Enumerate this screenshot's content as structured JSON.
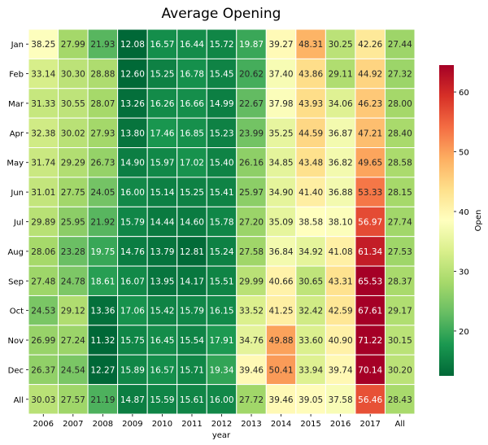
{
  "chart_data": {
    "type": "heatmap",
    "title": "Average Opening",
    "xlabel": "year",
    "ylabel": "",
    "colorbar_label": "Open",
    "colormap": "RdYlGn_r",
    "vmin": 12.5,
    "vmax": 64.5,
    "colorbar_ticks": [
      20,
      30,
      40,
      50,
      60
    ],
    "x_categories": [
      "2006",
      "2007",
      "2008",
      "2009",
      "2010",
      "2011",
      "2012",
      "2013",
      "2014",
      "2015",
      "2016",
      "2017",
      "All"
    ],
    "y_categories": [
      "Jan",
      "Feb",
      "Mar",
      "Apr",
      "May",
      "Jun",
      "Jul",
      "Aug",
      "Sep",
      "Oct",
      "Nov",
      "Dec",
      "All"
    ],
    "values": [
      [
        "38.25",
        "27.99",
        "21.93",
        "12.08",
        "16.57",
        "16.44",
        "15.72",
        "19.87",
        "39.27",
        "48.31",
        "30.25",
        "42.26",
        "27.44"
      ],
      [
        "33.14",
        "30.30",
        "28.88",
        "12.60",
        "15.25",
        "16.78",
        "15.45",
        "20.62",
        "37.40",
        "43.86",
        "29.11",
        "44.92",
        "27.32"
      ],
      [
        "31.33",
        "30.55",
        "28.07",
        "13.26",
        "16.26",
        "16.66",
        "14.99",
        "22.67",
        "37.98",
        "43.93",
        "34.06",
        "46.23",
        "28.00"
      ],
      [
        "32.38",
        "30.02",
        "27.93",
        "13.80",
        "17.46",
        "16.85",
        "15.23",
        "23.99",
        "35.25",
        "44.59",
        "36.87",
        "47.21",
        "28.40"
      ],
      [
        "31.74",
        "29.29",
        "26.73",
        "14.90",
        "15.97",
        "17.02",
        "15.40",
        "26.16",
        "34.85",
        "43.48",
        "36.82",
        "49.65",
        "28.58"
      ],
      [
        "31.01",
        "27.75",
        "24.05",
        "16.00",
        "15.14",
        "15.25",
        "15.41",
        "25.97",
        "34.90",
        "41.40",
        "36.88",
        "53.33",
        "28.15"
      ],
      [
        "29.89",
        "25.95",
        "21.92",
        "15.79",
        "14.44",
        "14.60",
        "15.78",
        "27.20",
        "35.09",
        "38.58",
        "38.10",
        "56.97",
        "27.74"
      ],
      [
        "28.06",
        "23.28",
        "19.75",
        "14.76",
        "13.79",
        "12.81",
        "15.24",
        "27.58",
        "36.84",
        "34.92",
        "41.08",
        "61.34",
        "27.53"
      ],
      [
        "27.48",
        "24.78",
        "18.61",
        "16.07",
        "13.95",
        "14.17",
        "15.51",
        "29.99",
        "40.66",
        "30.65",
        "43.31",
        "65.53",
        "28.37"
      ],
      [
        "24.53",
        "29.12",
        "13.36",
        "17.06",
        "15.42",
        "15.79",
        "16.15",
        "33.52",
        "41.25",
        "32.42",
        "42.59",
        "67.61",
        "29.17"
      ],
      [
        "26.99",
        "27.24",
        "11.32",
        "15.75",
        "16.45",
        "15.54",
        "17.91",
        "34.76",
        "49.88",
        "33.60",
        "40.90",
        "71.22",
        "30.15"
      ],
      [
        "26.37",
        "24.54",
        "12.27",
        "15.89",
        "16.57",
        "15.71",
        "19.34",
        "39.46",
        "50.41",
        "33.94",
        "39.74",
        "70.14",
        "30.20"
      ],
      [
        "30.03",
        "27.57",
        "21.19",
        "14.87",
        "15.59",
        "15.61",
        "16.00",
        "27.72",
        "39.46",
        "39.05",
        "37.58",
        "56.46",
        "28.43"
      ]
    ]
  }
}
